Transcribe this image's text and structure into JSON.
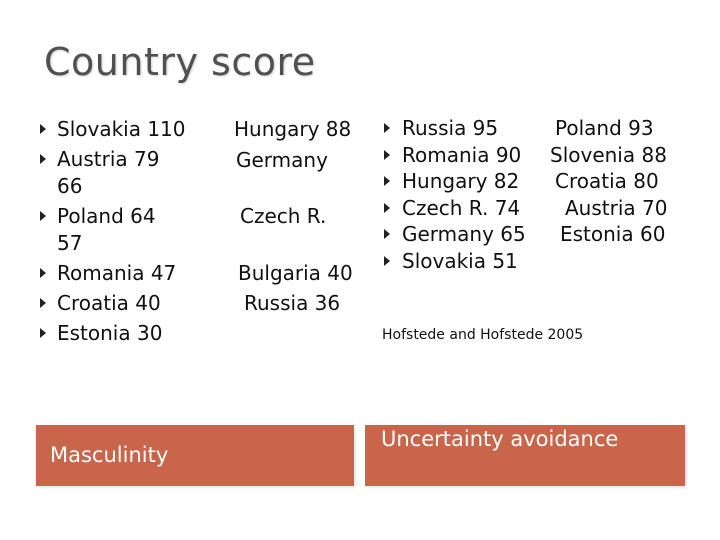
{
  "title": "Country score",
  "masculinity": {
    "left_lines": [
      "Slovakia 110",
      "Austria 79",
      "66",
      "Poland 64",
      "57",
      "Romania 47",
      "Croatia 40",
      "Estonia 30"
    ],
    "right_lines": [
      "Hungary 88",
      "Germany",
      "Czech R.",
      "Bulgaria 40",
      "Russia 36"
    ],
    "label": "Masculinity"
  },
  "uncertainty": {
    "left_lines": [
      "Russia 95",
      "Romania 90",
      "Hungary 82",
      "Czech R. 74",
      "Germany 65",
      "Slovakia 51"
    ],
    "right_lines": [
      "Poland 93",
      "Slovenia 88",
      "Croatia 80",
      "Austria 70",
      "Estonia 60"
    ],
    "label": "Uncertainty avoidance"
  },
  "citation": "Hofstede and Hofstede 2005",
  "colors": {
    "label_box": "#c9654b",
    "title": "#505050"
  }
}
